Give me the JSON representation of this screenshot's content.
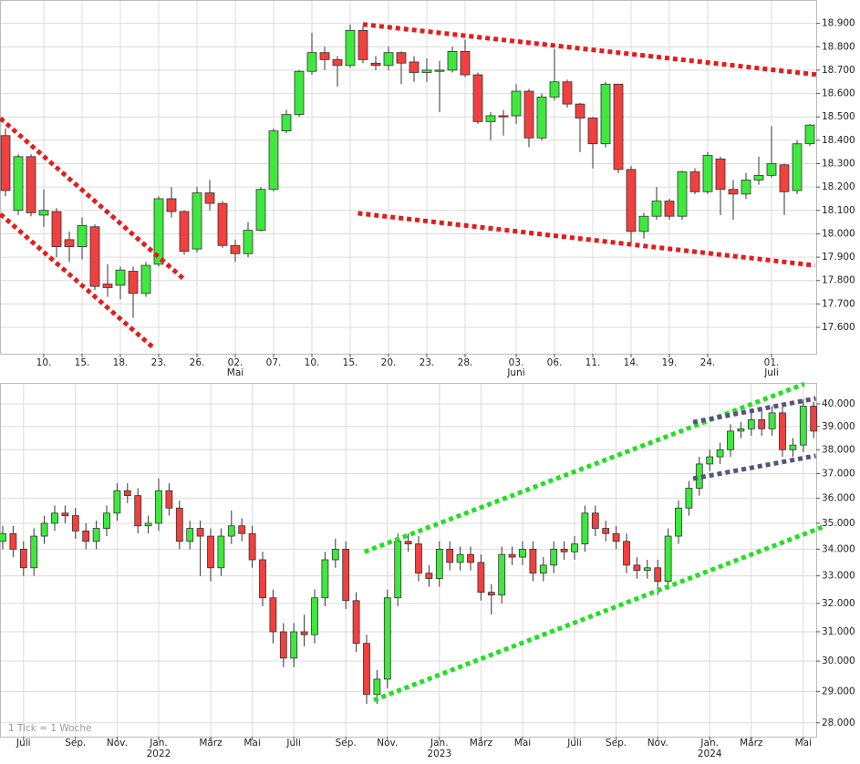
{
  "chart_data": [
    {
      "type": "candlestick",
      "categories": [
        null,
        null,
        null,
        "10.",
        null,
        null,
        "15.",
        null,
        null,
        "18.",
        null,
        null,
        "23.",
        null,
        null,
        "26.",
        null,
        null,
        "02.",
        null,
        null,
        "07.",
        null,
        null,
        "10.",
        null,
        null,
        "15.",
        null,
        null,
        "20.",
        null,
        null,
        "23.",
        null,
        null,
        "28.",
        null,
        null,
        null,
        "03.",
        null,
        null,
        "06.",
        null,
        null,
        "11.",
        null,
        null,
        "14.",
        null,
        null,
        "19.",
        null,
        null,
        "24.",
        null,
        null,
        null,
        null,
        "01.",
        null,
        null,
        null
      ],
      "categories2": [
        null,
        null,
        null,
        null,
        null,
        null,
        null,
        null,
        null,
        null,
        null,
        null,
        null,
        null,
        null,
        null,
        null,
        null,
        "Mai",
        null,
        null,
        null,
        null,
        null,
        null,
        null,
        null,
        null,
        null,
        null,
        null,
        null,
        null,
        null,
        null,
        null,
        null,
        null,
        null,
        null,
        "Juni",
        null,
        null,
        null,
        null,
        null,
        null,
        null,
        null,
        null,
        null,
        null,
        null,
        null,
        null,
        null,
        null,
        null,
        null,
        null,
        "Juli",
        null,
        null,
        null
      ],
      "open": [
        18420,
        18100,
        18330,
        18080,
        18095,
        17975,
        17945,
        18030,
        17785,
        17780,
        17840,
        17745,
        17870,
        18150,
        18095,
        17935,
        18175,
        18130,
        17950,
        17915,
        18015,
        18190,
        18440,
        18510,
        18695,
        18775,
        18745,
        18720,
        18870,
        18730,
        18720,
        18775,
        18735,
        18690,
        18695,
        18700,
        18780,
        18680,
        18480,
        18505,
        18505,
        18610,
        18410,
        18585,
        18650,
        18555,
        18495,
        18385,
        18640,
        18275,
        18010,
        18075,
        18140,
        18075,
        18265,
        18180,
        18320,
        18190,
        18170,
        18230,
        18250,
        18295,
        18185,
        18385
      ],
      "high": [
        18450,
        18340,
        18340,
        18190,
        18110,
        18010,
        18070,
        18040,
        17870,
        17860,
        17860,
        17880,
        18160,
        18200,
        18100,
        18200,
        18230,
        18140,
        17975,
        18050,
        18200,
        18450,
        18530,
        18700,
        18860,
        18800,
        18760,
        18895,
        18890,
        18760,
        18800,
        18780,
        18760,
        18750,
        18740,
        18800,
        18830,
        18690,
        18520,
        18530,
        18640,
        18620,
        18600,
        18790,
        18660,
        18560,
        18500,
        18650,
        18640,
        18290,
        18090,
        18200,
        18150,
        18270,
        18280,
        18350,
        18330,
        18230,
        18260,
        18330,
        18460,
        18300,
        18400,
        18470
      ],
      "low": [
        18160,
        18080,
        18075,
        18030,
        17900,
        17880,
        17890,
        17760,
        17730,
        17720,
        17640,
        17730,
        17860,
        18070,
        17910,
        17920,
        18100,
        17940,
        17880,
        17900,
        18010,
        18180,
        18430,
        18500,
        18680,
        18700,
        18630,
        18710,
        18730,
        18700,
        18700,
        18640,
        18650,
        18650,
        18520,
        18690,
        18670,
        18470,
        18400,
        18420,
        18470,
        18370,
        18400,
        18570,
        18540,
        18350,
        18280,
        18370,
        18260,
        17960,
        17980,
        18060,
        18060,
        18060,
        18170,
        18170,
        18080,
        18060,
        18150,
        18210,
        18240,
        18080,
        18170,
        18375
      ],
      "close": [
        18185,
        18330,
        18090,
        18100,
        17945,
        17945,
        18035,
        17775,
        17770,
        17845,
        17745,
        17865,
        18150,
        18095,
        17925,
        18175,
        18130,
        17950,
        17915,
        18015,
        18190,
        18440,
        18510,
        18695,
        18775,
        18745,
        18720,
        18870,
        18745,
        18720,
        18775,
        18730,
        18690,
        18700,
        18700,
        18780,
        18680,
        18480,
        18505,
        18500,
        18610,
        18410,
        18585,
        18650,
        18555,
        18495,
        18385,
        18640,
        18275,
        18010,
        18075,
        18140,
        18075,
        18265,
        18180,
        18335,
        18190,
        18170,
        18230,
        18250,
        18300,
        18180,
        18385,
        18465
      ],
      "up_color": "#3ee83e",
      "down_color": "#f04040",
      "ylim": [
        17487,
        19000
      ],
      "log_scale": false,
      "grid": true,
      "yticks": [
        {
          "value": 17600,
          "label": "17.600"
        },
        {
          "value": 17700,
          "label": "17.700"
        },
        {
          "value": 17800,
          "label": "17.800"
        },
        {
          "value": 17900,
          "label": "17.900"
        },
        {
          "value": 18000,
          "label": "18.000"
        },
        {
          "value": 18100,
          "label": "18.100"
        },
        {
          "value": 18200,
          "label": "18.200"
        },
        {
          "value": 18300,
          "label": "18.300"
        },
        {
          "value": 18400,
          "label": "18.400"
        },
        {
          "value": 18500,
          "label": "18.500"
        },
        {
          "value": 18600,
          "label": "18.600"
        },
        {
          "value": 18700,
          "label": "18.700"
        },
        {
          "value": 18800,
          "label": "18.800"
        },
        {
          "value": 18900,
          "label": "18.900"
        }
      ],
      "trendlines": [
        {
          "x": [
            -0.4,
            13.9
          ],
          "y": [
            18494,
            17810
          ],
          "color": "#e51c1c"
        },
        {
          "x": [
            -0.4,
            11.5
          ],
          "y": [
            18084,
            17517
          ],
          "color": "#e51c1c"
        },
        {
          "x": [
            28,
            63.5
          ],
          "y": [
            18896,
            18681
          ],
          "color": "#e51c1c"
        },
        {
          "x": [
            27.6,
            63.4
          ],
          "y": [
            18088,
            17865
          ],
          "color": "#e51c1c"
        }
      ]
    },
    {
      "type": "candlestick",
      "categories": [
        null,
        null,
        "Juli",
        null,
        null,
        null,
        null,
        "Sep.",
        null,
        null,
        null,
        "Nov.",
        null,
        null,
        null,
        "Jan.",
        null,
        null,
        null,
        null,
        "März",
        null,
        null,
        null,
        "Mai",
        null,
        null,
        null,
        "Juli",
        null,
        null,
        null,
        null,
        "Sep.",
        null,
        null,
        null,
        "Nov.",
        null,
        null,
        null,
        null,
        "Jan.",
        null,
        null,
        null,
        "März",
        null,
        null,
        null,
        "Mai",
        null,
        null,
        null,
        null,
        "Juli",
        null,
        null,
        null,
        "Sep.",
        null,
        null,
        null,
        "Nov.",
        null,
        null,
        null,
        null,
        "Jan.",
        null,
        null,
        null,
        "März",
        null,
        null,
        null,
        null,
        "Mai",
        null
      ],
      "categories2": [
        null,
        null,
        null,
        null,
        null,
        null,
        null,
        null,
        null,
        null,
        null,
        null,
        null,
        null,
        null,
        "2022",
        null,
        null,
        null,
        null,
        null,
        null,
        null,
        null,
        null,
        null,
        null,
        null,
        null,
        null,
        null,
        null,
        null,
        null,
        null,
        null,
        null,
        null,
        null,
        null,
        null,
        null,
        "2023",
        null,
        null,
        null,
        null,
        null,
        null,
        null,
        null,
        null,
        null,
        null,
        null,
        null,
        null,
        null,
        null,
        null,
        null,
        null,
        null,
        null,
        null,
        null,
        null,
        null,
        "2024",
        null,
        null,
        null,
        null,
        null,
        null,
        null,
        null,
        null,
        null
      ],
      "open": [
        34300,
        34600,
        34000,
        33300,
        34500,
        35000,
        35400,
        35300,
        34700,
        34300,
        34800,
        35400,
        36300,
        36100,
        34900,
        35000,
        36300,
        35600,
        34300,
        34800,
        34500,
        33300,
        34500,
        34900,
        34600,
        33600,
        32200,
        31000,
        30100,
        31000,
        30900,
        32200,
        33600,
        34000,
        32100,
        30600,
        28900,
        29400,
        32200,
        34300,
        34200,
        33100,
        32900,
        34000,
        33500,
        33800,
        33500,
        32400,
        32300,
        33800,
        33700,
        34000,
        33100,
        33400,
        34000,
        33900,
        34200,
        35400,
        34800,
        34600,
        34300,
        33400,
        33200,
        33300,
        32800,
        34500,
        35600,
        36400,
        37400,
        37700,
        38000,
        38800,
        38900,
        39300,
        38900,
        39600,
        38000,
        38200,
        39900
      ],
      "high": [
        34900,
        34900,
        34300,
        34800,
        35300,
        35700,
        35700,
        35600,
        35000,
        35100,
        35700,
        36600,
        36600,
        36400,
        35300,
        36800,
        36600,
        35900,
        35100,
        35100,
        34800,
        34800,
        35500,
        35200,
        34900,
        33900,
        32500,
        31300,
        31300,
        31600,
        32500,
        33900,
        34400,
        34300,
        32400,
        30900,
        29700,
        32500,
        34600,
        34600,
        34500,
        33400,
        34300,
        34300,
        34100,
        34100,
        33800,
        32700,
        34100,
        34100,
        34300,
        34300,
        33700,
        34300,
        34300,
        34500,
        35700,
        35700,
        35100,
        34900,
        34600,
        33700,
        33600,
        33600,
        34800,
        35900,
        36700,
        37700,
        38000,
        38300,
        39100,
        39200,
        39700,
        39800,
        39900,
        39900,
        38500,
        40200,
        40100
      ],
      "low": [
        34000,
        33700,
        33000,
        33000,
        34200,
        34700,
        35000,
        34400,
        34000,
        34000,
        34500,
        35100,
        35800,
        34600,
        34600,
        34700,
        35300,
        34000,
        34000,
        33000,
        32800,
        33000,
        34200,
        34300,
        33300,
        31900,
        30600,
        29800,
        29800,
        30500,
        30600,
        31900,
        33300,
        31800,
        30300,
        28600,
        28600,
        29100,
        31900,
        33900,
        32800,
        32600,
        32600,
        33200,
        33200,
        33200,
        32100,
        31600,
        32000,
        33400,
        33400,
        32800,
        32800,
        33100,
        33600,
        33600,
        33900,
        34500,
        34300,
        34000,
        33100,
        32900,
        32900,
        32300,
        32500,
        34200,
        35300,
        36100,
        37100,
        37400,
        37700,
        38500,
        38600,
        38600,
        38600,
        37700,
        37700,
        37900,
        38500
      ],
      "close": [
        34600,
        34000,
        33300,
        34500,
        35000,
        35400,
        35300,
        34700,
        34300,
        34800,
        35400,
        36300,
        36100,
        34900,
        35000,
        36300,
        35600,
        34300,
        34800,
        34500,
        33300,
        34500,
        34900,
        34600,
        33600,
        32200,
        31000,
        30100,
        31000,
        30900,
        32200,
        33600,
        34000,
        32100,
        30600,
        28900,
        29400,
        32200,
        34300,
        34200,
        33100,
        32900,
        34000,
        33500,
        33800,
        33500,
        32400,
        32300,
        33800,
        33700,
        34000,
        33100,
        33400,
        34000,
        33900,
        34200,
        35400,
        34800,
        34600,
        34300,
        33400,
        33200,
        33300,
        32800,
        34500,
        35600,
        36400,
        37400,
        37700,
        38000,
        38800,
        38900,
        39300,
        38900,
        39600,
        38000,
        38200,
        39900,
        38800
      ],
      "up_color": "#3ee83e",
      "down_color": "#f04040",
      "ylim": [
        27569,
        40949
      ],
      "log_scale": true,
      "grid": true,
      "yticks": [
        {
          "value": 28000,
          "label": "28.000"
        },
        {
          "value": 29000,
          "label": "29.000"
        },
        {
          "value": 30000,
          "label": "30.000"
        },
        {
          "value": 31000,
          "label": "31.000"
        },
        {
          "value": 32000,
          "label": "32.000"
        },
        {
          "value": 33000,
          "label": "33.000"
        },
        {
          "value": 34000,
          "label": "34.000"
        },
        {
          "value": 35000,
          "label": "35.000"
        },
        {
          "value": 36000,
          "label": "36.000"
        },
        {
          "value": 37000,
          "label": "37.000"
        },
        {
          "value": 38000,
          "label": "38.000"
        },
        {
          "value": 39000,
          "label": "39.000"
        },
        {
          "value": 40000,
          "label": "40.000"
        }
      ],
      "trendlines": [
        {
          "x": [
            34.8,
            77.1
          ],
          "y": [
            33900,
            40900
          ],
          "color": "#22e022"
        },
        {
          "x": [
            35.7,
            79.1
          ],
          "y": [
            28720,
            34890
          ],
          "color": "#22e022"
        },
        {
          "x": [
            66.4,
            78.2
          ],
          "y": [
            39190,
            40245
          ],
          "color": "#55557a"
        },
        {
          "x": [
            66.4,
            78.2
          ],
          "y": [
            36790,
            37745
          ],
          "color": "#55557a"
        }
      ],
      "note": "1 Tick = 1 Woche"
    }
  ]
}
